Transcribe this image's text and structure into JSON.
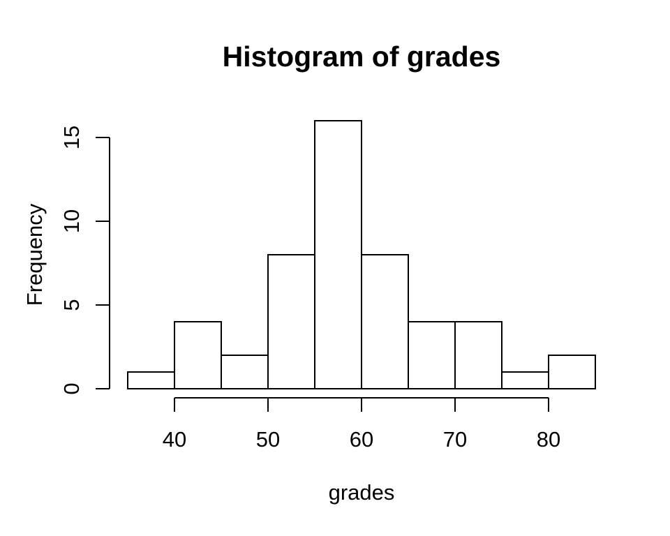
{
  "chart_data": {
    "type": "bar",
    "subtype": "histogram",
    "title": "Histogram of grades",
    "xlabel": "grades",
    "ylabel": "Frequency",
    "bin_width": 5,
    "bin_edges": [
      35,
      40,
      45,
      50,
      55,
      60,
      65,
      70,
      75,
      80,
      85
    ],
    "counts": [
      1,
      4,
      2,
      8,
      16,
      8,
      4,
      4,
      1,
      2
    ],
    "x_ticks": [
      40,
      50,
      60,
      70,
      80
    ],
    "y_ticks": [
      0,
      5,
      10,
      15
    ],
    "xlim": [
      35,
      85
    ],
    "ylim": [
      0,
      16
    ],
    "grid": false,
    "legend": "none",
    "colors": {
      "bar_fill": "#ffffff",
      "stroke": "#000000",
      "text": "#000000",
      "background": "#ffffff"
    }
  }
}
